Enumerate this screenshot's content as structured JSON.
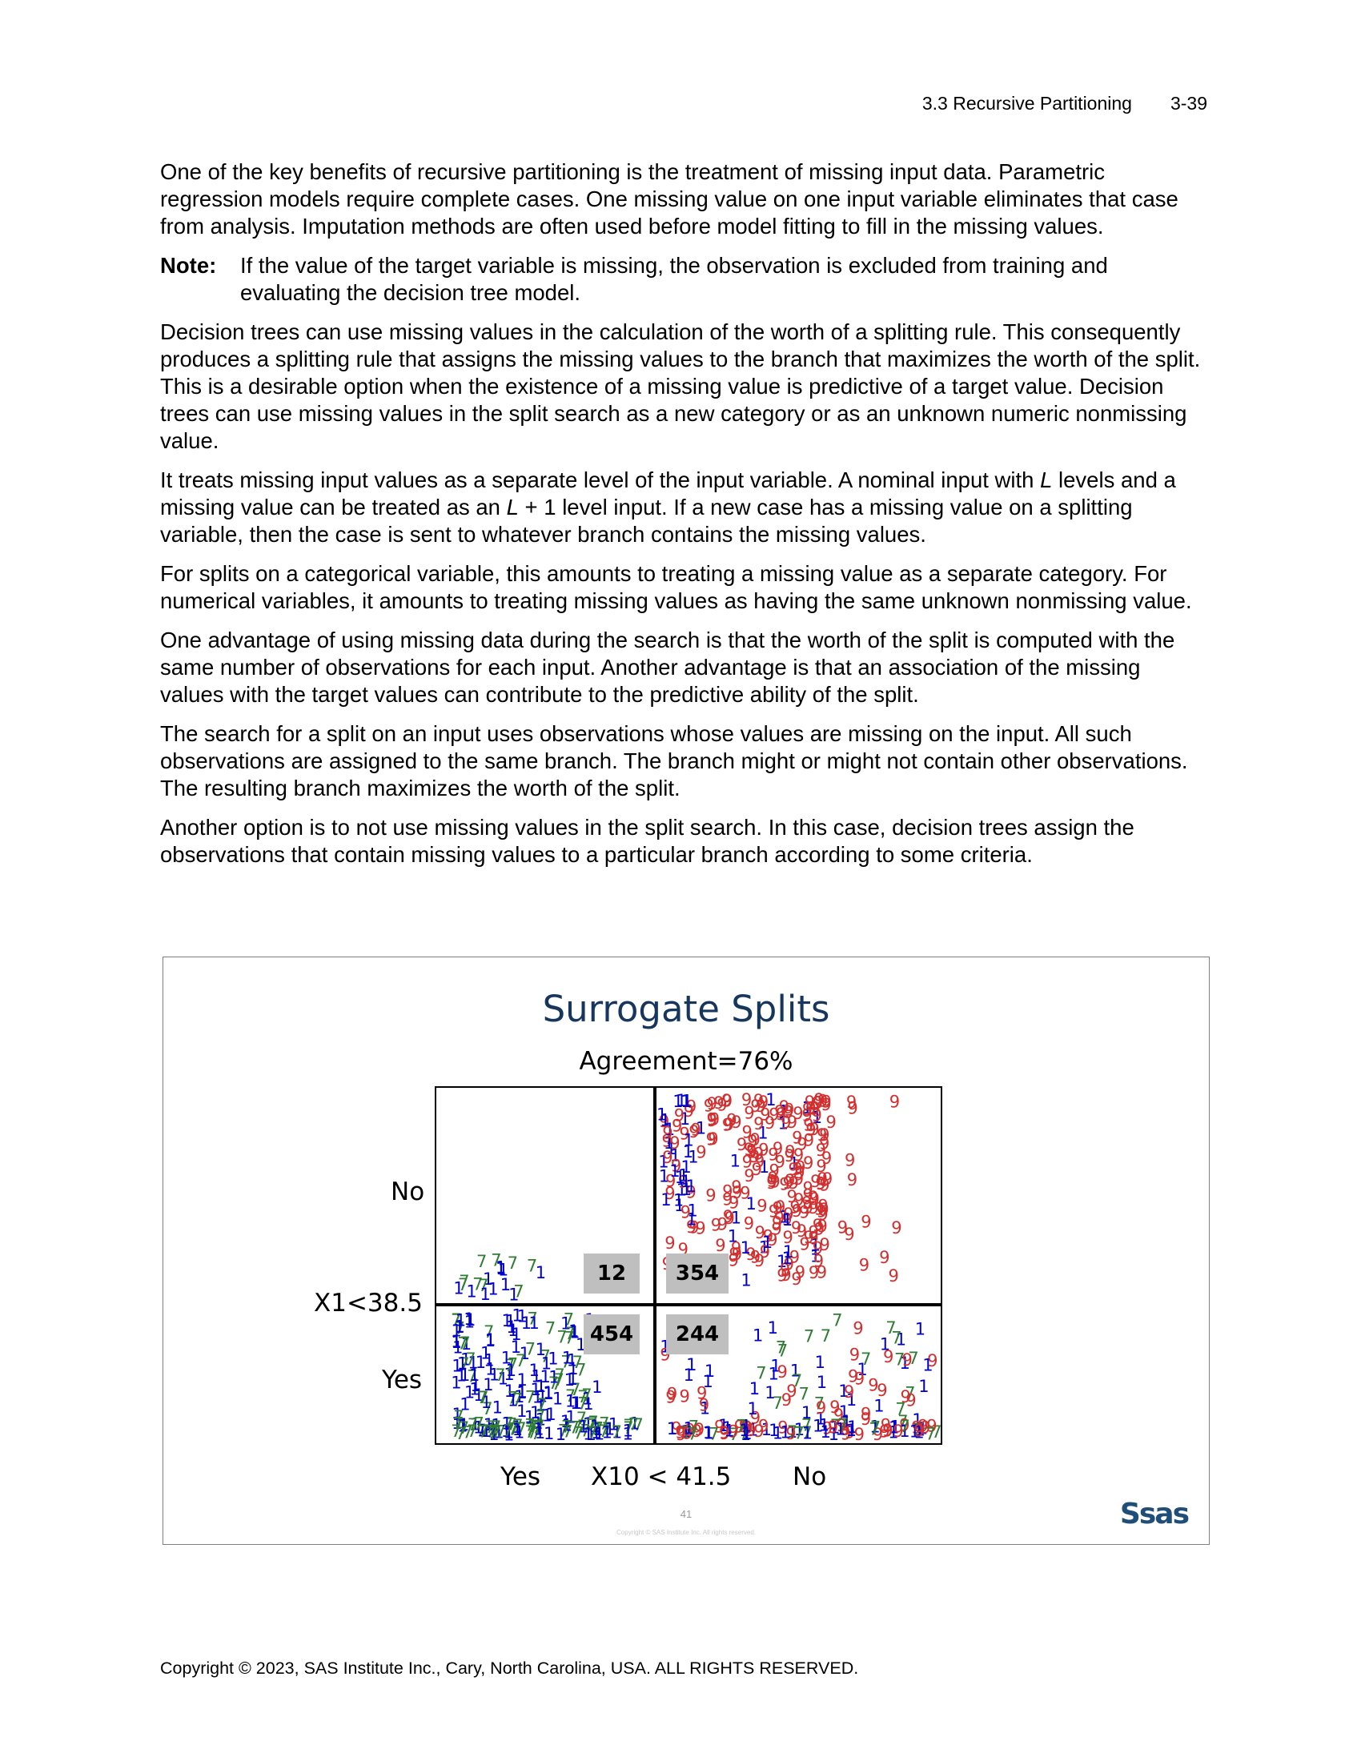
{
  "header": {
    "section": "3.3  Recursive Partitioning",
    "page": "3-39"
  },
  "body": {
    "p1": "One of the key benefits of recursive partitioning is the treatment of missing input data. Parametric regression models require complete cases. One missing value on one input variable eliminates that case from analysis. Imputation methods are often used before model fitting to fill in the missing values.",
    "note_label": "Note:",
    "note_text": "If the value of the target variable is missing, the observation is excluded from training and evaluating the decision tree model.",
    "p2": "Decision trees can use missing values in the calculation of the worth of a splitting rule. This consequently produces a splitting rule that assigns the missing values to the branch that maximizes the worth of the split. This is a desirable option when the existence of a missing value is predictive of a target value. Decision trees can use missing values in the split search as a new category or as an unknown numeric nonmissing value.",
    "p3a": "It treats missing input values as a separate level of the input variable. A nominal input with ",
    "p3b": "L",
    "p3c": " levels and a missing value can be treated as an ",
    "p3d": "L",
    "p3e": " + 1 level input. If a new case has a missing value on a splitting variable, then the case is sent to whatever branch contains the missing values.",
    "p4": "For splits on a categorical variable, this amounts to treating a missing value as a separate category. For numerical variables, it amounts to treating missing values as having the same unknown nonmissing value.",
    "p5": "One advantage of using missing data during the search is that the worth of the split is computed with the same number of observations for each input. Another advantage is that an association of the missing values with the target values can contribute to the predictive ability of the split.",
    "p6": "The search for a split on an input uses observations whose values are missing on the input. All such observations are assigned to the same branch. The branch might or might not contain other observations. The resulting branch maximizes the worth of the split.",
    "p7": "Another option is to not use missing values in the split search. In this case, decision trees assign the observations that contain missing values to a particular branch according to some criteria."
  },
  "slide": {
    "title": "Surrogate Splits",
    "agreement": "Agreement=76%",
    "y_no": "No",
    "y_split": "X1<38.5",
    "y_yes": "Yes",
    "x_yes": "Yes",
    "x_split": "X10 < 41.5",
    "x_no": "No",
    "page_number": "41",
    "copyright": "Copyright © SAS Institute Inc. All rights reserved.",
    "logo": "Ssas",
    "counts": {
      "top_left": "12",
      "top_right": "354",
      "bottom_left": "454",
      "bottom_right": "244"
    }
  },
  "chart_data": {
    "type": "scatter",
    "title": "Surrogate Splits",
    "subtitle": "Agreement=76%",
    "xlabel": "X10 < 41.5",
    "ylabel": "X1<38.5",
    "marker_labels": [
      "1",
      "7",
      "9"
    ],
    "colors": {
      "1": "#0000cc",
      "7": "#2e7d32",
      "9": "#d32f2f"
    },
    "quadrant_counts": {
      "no_yes": 12,
      "no_no": 354,
      "yes_yes": 454,
      "yes_no": 244
    }
  },
  "footer": "Copyright © 2023, SAS Institute Inc., Cary, North Carolina, USA. ALL RIGHTS RESERVED."
}
